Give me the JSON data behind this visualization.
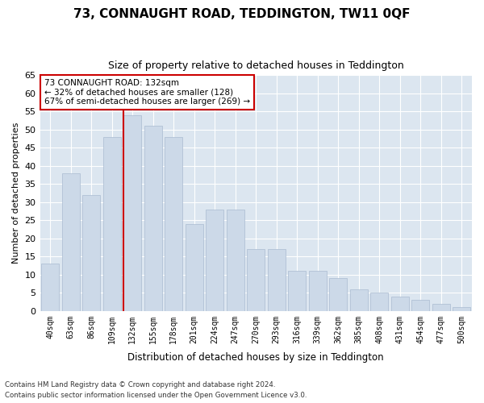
{
  "title": "73, CONNAUGHT ROAD, TEDDINGTON, TW11 0QF",
  "subtitle": "Size of property relative to detached houses in Teddington",
  "xlabel": "Distribution of detached houses by size in Teddington",
  "ylabel": "Number of detached properties",
  "bar_color": "#ccd9e8",
  "bar_edge_color": "#aabbd0",
  "background_color": "#dce6f0",
  "grid_color": "#ffffff",
  "vline_color": "#cc0000",
  "annotation_text": "73 CONNAUGHT ROAD: 132sqm\n← 32% of detached houses are smaller (128)\n67% of semi-detached houses are larger (269) →",
  "annotation_box_color": "white",
  "annotation_edge_color": "#cc0000",
  "categories": [
    "40sqm",
    "63sqm",
    "86sqm",
    "109sqm",
    "132sqm",
    "155sqm",
    "178sqm",
    "201sqm",
    "224sqm",
    "247sqm",
    "270sqm",
    "293sqm",
    "316sqm",
    "339sqm",
    "362sqm",
    "385sqm",
    "408sqm",
    "431sqm",
    "454sqm",
    "477sqm",
    "500sqm"
  ],
  "bar_values": [
    13,
    38,
    32,
    48,
    54,
    51,
    48,
    24,
    28,
    28,
    17,
    17,
    11,
    11,
    9,
    6,
    5,
    4,
    3,
    2,
    1
  ],
  "ylim": [
    0,
    65
  ],
  "yticks": [
    0,
    5,
    10,
    15,
    20,
    25,
    30,
    35,
    40,
    45,
    50,
    55,
    60,
    65
  ],
  "footer_line1": "Contains HM Land Registry data © Crown copyright and database right 2024.",
  "footer_line2": "Contains public sector information licensed under the Open Government Licence v3.0.",
  "figsize": [
    6.0,
    5.0
  ],
  "dpi": 100
}
